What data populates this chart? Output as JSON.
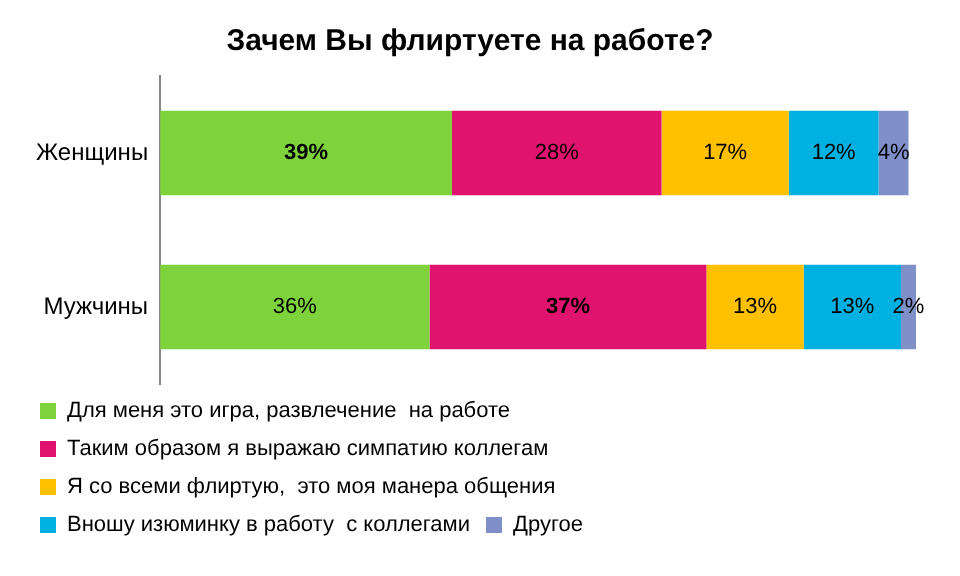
{
  "chart_data": {
    "type": "bar",
    "orientation": "horizontal",
    "stacked": true,
    "title": "Зачем Вы флиртуете на работе?",
    "categories": [
      "Женщины",
      "Мужчины"
    ],
    "series": [
      {
        "name": "Для меня это игра, развлечение  на работе",
        "color": "#7ed33c",
        "values": [
          39,
          36
        ],
        "value_labels": [
          "39%",
          "36%"
        ]
      },
      {
        "name": "Таким образом я выражаю симпатию коллегам",
        "color": "#e0136e",
        "values": [
          28,
          37
        ],
        "value_labels": [
          "28%",
          "37%"
        ]
      },
      {
        "name": "Я со всеми флиртую,  это моя манера общения",
        "color": "#ffc000",
        "values": [
          17,
          13
        ],
        "value_labels": [
          "17%",
          "13%"
        ]
      },
      {
        "name": "Вношу изюминку в работу  с коллегами",
        "color": "#00b0e0",
        "values": [
          12,
          13
        ],
        "value_labels": [
          "12%",
          "13%"
        ]
      },
      {
        "name": "Другое",
        "color": "#7f8fc8",
        "values": [
          4,
          2
        ],
        "value_labels": [
          "4%",
          "2%"
        ]
      }
    ],
    "grid": false,
    "legend": "bottom"
  }
}
